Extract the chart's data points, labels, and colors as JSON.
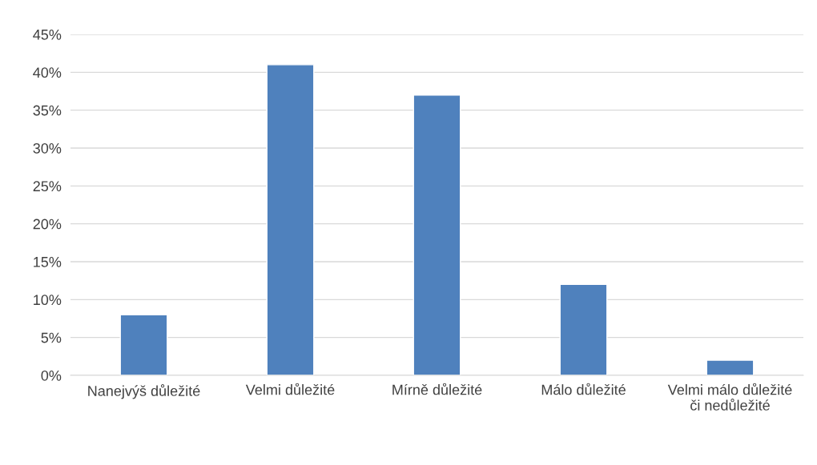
{
  "chart_data": {
    "type": "bar",
    "categories": [
      "Nanejvýš důležité",
      "Velmi důležité",
      "Mírně důležité",
      "Málo důležité",
      "Velmi málo důležité či nedůležité"
    ],
    "values": [
      8,
      41,
      37,
      12,
      2
    ],
    "color": "#4f81bd",
    "ylim": [
      0,
      45
    ],
    "yticks": [
      {
        "value": 0,
        "label": "0%"
      },
      {
        "value": 5,
        "label": "5%"
      },
      {
        "value": 10,
        "label": "10%"
      },
      {
        "value": 15,
        "label": "15%"
      },
      {
        "value": 20,
        "label": "20%"
      },
      {
        "value": 25,
        "label": "25%"
      },
      {
        "value": 30,
        "label": "30%"
      },
      {
        "value": 35,
        "label": "35%"
      },
      {
        "value": 40,
        "label": "40%"
      },
      {
        "value": 45,
        "label": "45%"
      }
    ],
    "grid": "y"
  }
}
